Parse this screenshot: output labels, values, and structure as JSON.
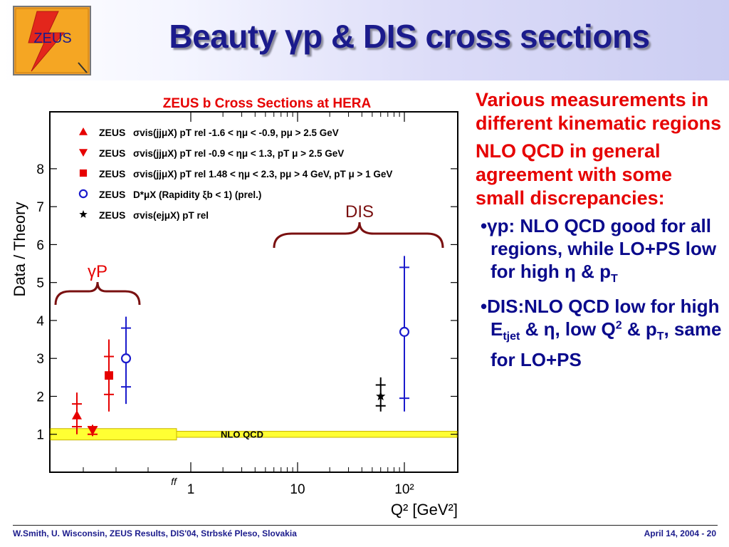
{
  "slide": {
    "title": "Beauty γp & DIS cross sections",
    "logo_text": "ZEUS",
    "footer_left": "W.Smith, U. Wisconsin, ZEUS Results, DIS'04, Strbské Pleso, Slovakia",
    "footer_right": "April 14, 2004  -  20"
  },
  "bullets": {
    "item1": "Various measurements in different kinematic regions",
    "item2": "NLO QCD in general agreement with some small discrepancies:",
    "sub1_a": "γp: NLO QCD good for all regions, while LO+PS low for high η & p",
    "sub1_sub": "T",
    "sub2_a": "DIS:NLO QCD low for high E",
    "sub2_sub1": "tjet",
    "sub2_b": " & η, low Q",
    "sub2_sup": "2",
    "sub2_c": " & p",
    "sub2_sub2": "T",
    "sub2_d": ", same for LO+PS"
  },
  "chart_data": {
    "type": "scatter",
    "title": "ZEUS b Cross Sections at HERA",
    "ylabel": "Data / Theory",
    "xlabel": "Q² [GeV²]",
    "x_scale": "log",
    "ylim": [
      0,
      9.5
    ],
    "x_ticks": [
      "1",
      "10",
      "10²"
    ],
    "x_break_label": "ff",
    "y_ticks": [
      1,
      2,
      3,
      4,
      5,
      6,
      7,
      8
    ],
    "band": {
      "label": "NLO QCD",
      "y_low": 0.85,
      "y_high": 1.15,
      "color": "#ffff33"
    },
    "annotations": {
      "gp": "γP",
      "dis": "DIS"
    },
    "legend": [
      {
        "marker": "triangle-up",
        "color": "#e60000",
        "exp": "ZEUS",
        "text": "σvis(jjμX) pT rel  -1.6 < ημ < -0.9, pμ > 2.5 GeV"
      },
      {
        "marker": "triangle-down",
        "color": "#e60000",
        "exp": "ZEUS",
        "text": "σvis(jjμX) pT rel  -0.9 < ημ < 1.3, pT μ > 2.5 GeV"
      },
      {
        "marker": "square",
        "color": "#e60000",
        "exp": "ZEUS",
        "text": "σvis(jjμX) pT rel  1.48 < ημ < 2.3, pμ > 4 GeV, pT μ > 1 GeV"
      },
      {
        "marker": "circle-open",
        "color": "#1a1acc",
        "exp": "ZEUS",
        "text": "D*μX (Rapidity ξb < 1) (prel.)"
      },
      {
        "marker": "star",
        "color": "#000000",
        "exp": "ZEUS",
        "text": "σvis(ejμX) pT rel"
      }
    ],
    "series": [
      {
        "marker": "triangle-up",
        "color": "#e60000",
        "group": "photoproduction",
        "y": 1.5,
        "y_stat": [
          1.2,
          1.8
        ],
        "y_tot": [
          1.0,
          2.1
        ]
      },
      {
        "marker": "triangle-down",
        "color": "#e60000",
        "group": "photoproduction",
        "y": 1.1,
        "y_stat": [
          1.0,
          1.2
        ],
        "y_tot": [
          0.95,
          1.25
        ]
      },
      {
        "marker": "square",
        "color": "#e60000",
        "group": "photoproduction",
        "y": 2.55,
        "y_stat": [
          2.05,
          3.05
        ],
        "y_tot": [
          1.6,
          3.5
        ]
      },
      {
        "marker": "circle-open",
        "color": "#1a1acc",
        "group": "photoproduction",
        "y": 3.0,
        "y_stat": [
          2.25,
          3.8
        ],
        "y_tot": [
          1.8,
          4.1
        ]
      },
      {
        "marker": "star",
        "color": "#000000",
        "group": "DIS",
        "x": 60,
        "y": 2.0,
        "y_stat": [
          1.75,
          2.3
        ],
        "y_tot": [
          1.6,
          2.5
        ]
      },
      {
        "marker": "circle-open",
        "color": "#1a1acc",
        "group": "DIS",
        "x": 100,
        "y": 3.7,
        "y_stat": [
          1.95,
          5.4
        ],
        "y_tot": [
          1.6,
          5.7
        ]
      }
    ]
  }
}
